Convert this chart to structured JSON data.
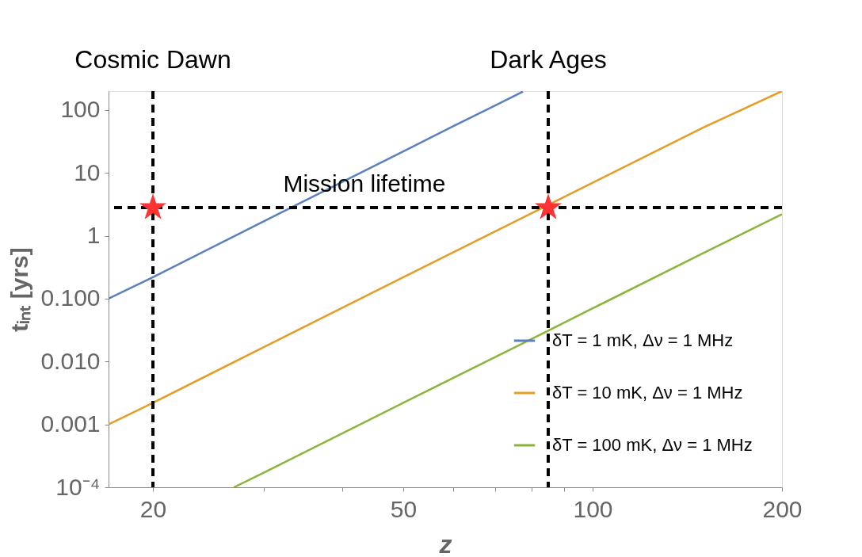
{
  "chart_data": {
    "type": "line",
    "xlabel": "z",
    "ylabel": "tᵢₙₜ [yrs]",
    "log": "xy",
    "xlim": [
      17,
      200
    ],
    "ylim": [
      0.0001,
      200
    ],
    "xticks": [
      20,
      {
        "value": 30,
        "label": null
      },
      {
        "value": 40,
        "label": null
      },
      50,
      {
        "value": 60,
        "label": null
      },
      {
        "value": 70,
        "label": null
      },
      {
        "value": 80,
        "label": null
      },
      {
        "value": 90,
        "label": null
      },
      100,
      200
    ],
    "yticks": [
      {
        "value": 0.0001,
        "label": "10⁻⁴"
      },
      {
        "value": 0.001,
        "label": "0.001"
      },
      {
        "value": 0.01,
        "label": "0.010"
      },
      {
        "value": 0.1,
        "label": "0.100"
      },
      1,
      10,
      100
    ],
    "legend": "bottom right",
    "line_style": "solid",
    "series": [
      {
        "name": "δT = 1 mK, Δν = 1 MHz",
        "color": "#5b7fbf",
        "x": [
          17,
          20,
          30,
          40,
          50,
          60,
          70,
          77.5
        ],
        "values": [
          0.1,
          0.22,
          1.7,
          7.2,
          22,
          55,
          118,
          197
        ]
      },
      {
        "name": "δT = 10 mK, Δν = 1 MHz",
        "color": "#e59d23",
        "x": [
          17,
          20,
          30,
          50,
          85,
          100,
          150,
          200
        ],
        "values": [
          0.001,
          0.0022,
          0.017,
          0.22,
          3.1,
          7,
          53,
          200
        ]
      },
      {
        "name": "δT = 100 mK, Δν = 1 MHz",
        "color": "#8cb43a",
        "x": [
          26.9,
          30,
          50,
          85,
          100,
          150,
          200
        ],
        "values": [
          0.0001,
          0.00017,
          0.0022,
          0.031,
          0.07,
          0.53,
          2.2
        ]
      },
      {
        "type": "scatter",
        "marker": "star",
        "color": "#ff3333",
        "x": [
          20,
          85
        ],
        "values": [
          2.8,
          2.8
        ]
      }
    ],
    "ref_lines": [
      {
        "axis": "x",
        "value": 20,
        "label": "Cosmic Dawn",
        "color": "#000000",
        "line_style": "dashed"
      },
      {
        "axis": "x",
        "value": 85,
        "label": "Dark Ages",
        "color": "#000000",
        "line_style": "dashed"
      },
      {
        "axis": "y",
        "value": 2.8,
        "label": "Mission lifetime",
        "color": "#000000",
        "line_style": "dashed"
      }
    ]
  }
}
